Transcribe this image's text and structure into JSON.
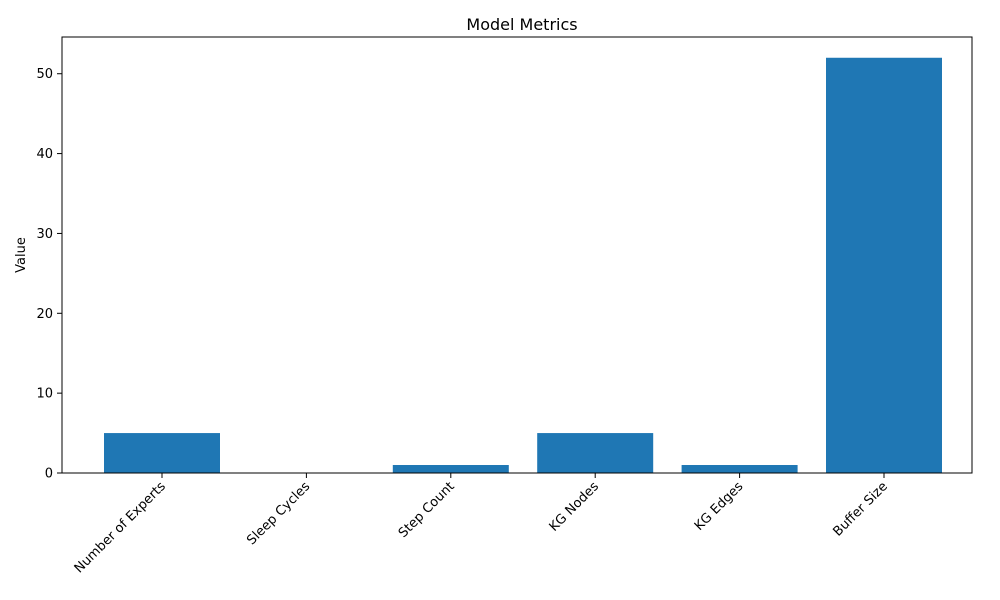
{
  "chart_data": {
    "type": "bar",
    "title": "Model Metrics",
    "xlabel": "",
    "ylabel": "Value",
    "categories": [
      "Number of Experts",
      "Sleep Cycles",
      "Step Count",
      "KG Nodes",
      "KG Edges",
      "Buffer Size"
    ],
    "values": [
      5,
      0,
      1,
      5,
      1,
      52
    ],
    "ylim": [
      0,
      54.6
    ],
    "yticks": [
      0,
      10,
      20,
      30,
      40,
      50
    ],
    "grid": false,
    "bar_color": "#1f77b4"
  }
}
